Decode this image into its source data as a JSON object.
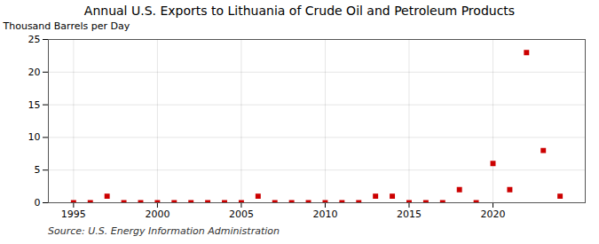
{
  "chart_data": {
    "type": "scatter",
    "title": "Annual U.S. Exports to Lithuania of Crude Oil and Petroleum Products",
    "ylabel": "Thousand Barrels per Day",
    "source": "Source: U.S. Energy Information Administration",
    "x": [
      1995,
      1996,
      1997,
      1998,
      1999,
      2000,
      2001,
      2002,
      2003,
      2004,
      2005,
      2006,
      2007,
      2008,
      2009,
      2010,
      2011,
      2012,
      2013,
      2014,
      2015,
      2016,
      2017,
      2018,
      2019,
      2020,
      2021,
      2022,
      2023,
      2024
    ],
    "values": [
      0.0,
      0.0,
      1.0,
      0.0,
      0.0,
      0.0,
      0.0,
      0.0,
      0.0,
      0.0,
      0.0,
      1.0,
      0.0,
      0.0,
      0.0,
      0.0,
      0.0,
      0.0,
      1.0,
      1.0,
      0.0,
      0.0,
      0.0,
      2.0,
      0.0,
      6.0,
      2.0,
      23.0,
      8.0,
      1.0
    ],
    "color": "#cc0000",
    "marker": "square",
    "xlim": [
      1993.5,
      2025.5
    ],
    "ylim": [
      0,
      25
    ],
    "xticks": [
      1995,
      2000,
      2005,
      2010,
      2015,
      2020
    ],
    "yticks": [
      0,
      5,
      10,
      15,
      20,
      25
    ],
    "grid": true
  }
}
